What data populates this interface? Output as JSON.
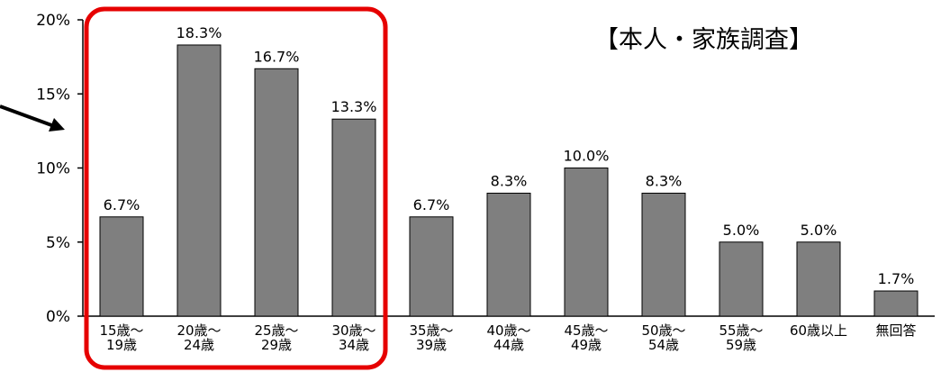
{
  "chart_data": {
    "type": "bar",
    "title": "【本人・家族調査】",
    "categories": [
      [
        "15歳〜",
        "19歳"
      ],
      [
        "20歳〜",
        "24歳"
      ],
      [
        "25歳〜",
        "29歳"
      ],
      [
        "30歳〜",
        "34歳"
      ],
      [
        "35歳〜",
        "39歳"
      ],
      [
        "40歳〜",
        "44歳"
      ],
      [
        "45歳〜",
        "49歳"
      ],
      [
        "50歳〜",
        "54歳"
      ],
      [
        "55歳〜",
        "59歳"
      ],
      [
        "60歳以上"
      ],
      [
        "無回答"
      ]
    ],
    "values": [
      6.7,
      18.3,
      16.7,
      13.3,
      6.7,
      8.3,
      10.0,
      8.3,
      5.0,
      5.0,
      1.7
    ],
    "data_labels": [
      "6.7%",
      "18.3%",
      "16.7%",
      "13.3%",
      "6.7%",
      "8.3%",
      "10.0%",
      "8.3%",
      "5.0%",
      "5.0%",
      "1.7%"
    ],
    "yticks": [
      "0%",
      "5%",
      "10%",
      "15%",
      "20%"
    ],
    "ylim": [
      0,
      20
    ],
    "grid": false,
    "colors": {
      "bar": "#7f7f7f",
      "bar_edge": "#000000",
      "highlight": "#e60000",
      "arrow": "#000000"
    },
    "highlight_range": [
      0,
      3
    ]
  }
}
